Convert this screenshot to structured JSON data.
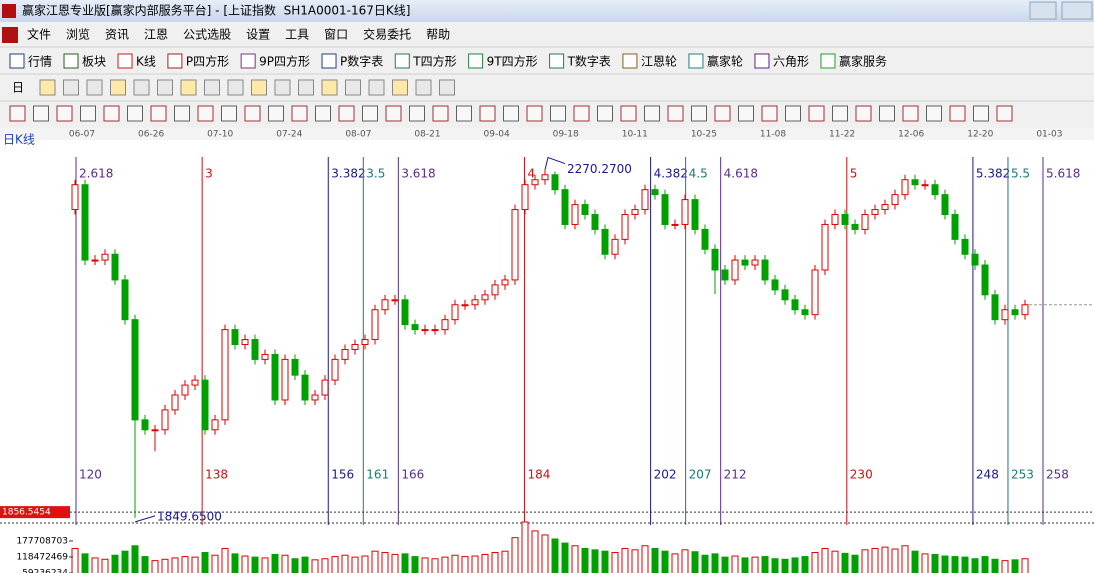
{
  "window_title": "赢家江恩专业版[赢家内部服务平台] - [上证指数  SH1A0001-167日K线]",
  "menu": [
    "文件",
    "浏览",
    "资讯",
    "江恩",
    "公式选股",
    "设置",
    "工具",
    "窗口",
    "交易委托",
    "帮助"
  ],
  "toolbar": [
    "行情",
    "板块",
    "K线",
    "P四方形",
    "9P四方形",
    "P数字表",
    "T四方形",
    "9T四方形",
    "T数字表",
    "江恩轮",
    "赢家轮",
    "六角形",
    "赢家服务"
  ],
  "period_selector": "日",
  "chart_data": {
    "type": "candlestick",
    "title": "日K线",
    "date_labels": [
      "06-07",
      "06-26",
      "07-10",
      "07-24",
      "08-07",
      "08-21",
      "09-04",
      "09-18",
      "10-11",
      "10-25",
      "11-08",
      "11-22",
      "12-06",
      "12-20",
      "01-03"
    ],
    "open": [
      2222,
      2252,
      2161,
      2161,
      2168,
      2137,
      2089,
      1968,
      1956,
      1956,
      1980,
      1998,
      2010,
      2016,
      1956,
      1968,
      2077,
      2059,
      2065,
      2041,
      2047,
      1992,
      2041,
      2022,
      1992,
      1998,
      2016,
      2041,
      2053,
      2059,
      2065,
      2101,
      2113,
      2113,
      2083,
      2077,
      2077,
      2077,
      2089,
      2107,
      2107,
      2113,
      2119,
      2131,
      2137,
      2222,
      2252,
      2258,
      2264,
      2246,
      2204,
      2228,
      2216,
      2198,
      2168,
      2186,
      2216,
      2222,
      2246,
      2240,
      2204,
      2204,
      2234,
      2198,
      2174,
      2149,
      2137,
      2161,
      2155,
      2161,
      2137,
      2125,
      2113,
      2101,
      2095,
      2149,
      2204,
      2216,
      2204,
      2198,
      2216,
      2222,
      2228,
      2240,
      2258,
      2252,
      2252,
      2240,
      2216,
      2186,
      2168,
      2155,
      2119,
      2089,
      2101,
      2095
    ],
    "high": [
      2258,
      2258,
      2167,
      2174,
      2174,
      2143,
      2095,
      1974,
      1962,
      1986,
      2004,
      2016,
      2022,
      2022,
      1974,
      2083,
      2083,
      2071,
      2071,
      2053,
      2053,
      2047,
      2047,
      2028,
      2004,
      2022,
      2047,
      2059,
      2065,
      2071,
      2107,
      2119,
      2119,
      2119,
      2089,
      2083,
      2083,
      2095,
      2113,
      2113,
      2119,
      2125,
      2137,
      2143,
      2228,
      2258,
      2264,
      2270.27,
      2268,
      2252,
      2234,
      2234,
      2222,
      2204,
      2192,
      2222,
      2228,
      2252,
      2252,
      2246,
      2210,
      2240,
      2240,
      2204,
      2180,
      2155,
      2167,
      2167,
      2167,
      2167,
      2143,
      2131,
      2119,
      2107,
      2155,
      2210,
      2222,
      2222,
      2210,
      2222,
      2228,
      2234,
      2246,
      2264,
      2264,
      2258,
      2258,
      2246,
      2222,
      2192,
      2174,
      2161,
      2125,
      2107,
      2107,
      2113
    ],
    "low": [
      2216,
      2155,
      2155,
      2155,
      2131,
      2083,
      1849.65,
      1950,
      1930,
      1950,
      1974,
      1992,
      2004,
      1950,
      1950,
      1962,
      2053,
      2053,
      2035,
      2035,
      1986,
      1986,
      2016,
      1986,
      1986,
      1992,
      2010,
      2035,
      2047,
      2053,
      2059,
      2095,
      2107,
      2077,
      2071,
      2071,
      2071,
      2071,
      2083,
      2101,
      2101,
      2107,
      2113,
      2125,
      2131,
      2216,
      2246,
      2252,
      2240,
      2198,
      2198,
      2210,
      2192,
      2162,
      2162,
      2180,
      2210,
      2216,
      2234,
      2198,
      2198,
      2198,
      2192,
      2168,
      2120,
      2131,
      2131,
      2149,
      2149,
      2131,
      2119,
      2107,
      2095,
      2089,
      2089,
      2143,
      2198,
      2198,
      2192,
      2192,
      2210,
      2216,
      2222,
      2234,
      2246,
      2246,
      2234,
      2210,
      2180,
      2162,
      2149,
      2113,
      2083,
      2083,
      2089,
      2089
    ],
    "close": [
      2252,
      2161,
      2161,
      2168,
      2137,
      2089,
      1968,
      1956,
      1956,
      1980,
      1998,
      2010,
      2016,
      1956,
      1968,
      2077,
      2059,
      2065,
      2041,
      2047,
      1992,
      2041,
      2022,
      1992,
      1998,
      2016,
      2041,
      2053,
      2059,
      2065,
      2101,
      2113,
      2113,
      2083,
      2077,
      2077,
      2077,
      2089,
      2107,
      2107,
      2113,
      2119,
      2131,
      2137,
      2222,
      2252,
      2258,
      2264,
      2246,
      2204,
      2228,
      2216,
      2198,
      2168,
      2186,
      2216,
      2222,
      2246,
      2240,
      2204,
      2204,
      2234,
      2198,
      2174,
      2149,
      2137,
      2161,
      2155,
      2161,
      2137,
      2125,
      2113,
      2101,
      2095,
      2149,
      2204,
      2216,
      2204,
      2198,
      2216,
      2222,
      2228,
      2240,
      2258,
      2252,
      2252,
      2240,
      2216,
      2186,
      2168,
      2155,
      2119,
      2089,
      2101,
      2095,
      2107
    ],
    "volume": [
      150000000,
      130000000,
      115000000,
      110000000,
      125000000,
      140000000,
      160000000,
      120000000,
      105000000,
      110000000,
      115000000,
      120000000,
      118000000,
      135000000,
      125000000,
      150000000,
      130000000,
      122000000,
      118000000,
      115000000,
      128000000,
      125000000,
      112000000,
      118000000,
      108000000,
      112000000,
      120000000,
      125000000,
      118000000,
      122000000,
      140000000,
      135000000,
      128000000,
      130000000,
      120000000,
      115000000,
      112000000,
      118000000,
      125000000,
      120000000,
      122000000,
      128000000,
      135000000,
      140000000,
      190000000,
      248000000,
      215000000,
      200000000,
      185000000,
      170000000,
      160000000,
      150000000,
      145000000,
      140000000,
      135000000,
      150000000,
      145000000,
      160000000,
      150000000,
      140000000,
      130000000,
      145000000,
      138000000,
      125000000,
      130000000,
      118000000,
      122000000,
      115000000,
      118000000,
      120000000,
      112000000,
      110000000,
      115000000,
      120000000,
      135000000,
      150000000,
      140000000,
      132000000,
      125000000,
      145000000,
      150000000,
      155000000,
      148000000,
      160000000,
      140000000,
      130000000,
      128000000,
      122000000,
      120000000,
      118000000,
      112000000,
      120000000,
      110000000,
      105000000,
      108000000,
      112000000
    ],
    "up_color": "#e00000",
    "down_color": "#00a000",
    "ylim": [
      1841,
      2306
    ],
    "volume_ylim": [
      0,
      248000000
    ],
    "volume_ticks": [
      59236234,
      118472469,
      177708703
    ],
    "high_mark": {
      "value": 2270.27,
      "label": "2270.2700"
    },
    "low_mark": {
      "value": 1849.65,
      "label": "1849.6500"
    },
    "price_line": {
      "value": 1856.5454,
      "label": "1856.5454"
    },
    "cycle_xlim": [
      120,
      258
    ],
    "time_cycles": [
      {
        "bar": 120,
        "ratio": 2.618,
        "color": "#5a2d8a"
      },
      {
        "bar": 138,
        "ratio": 3,
        "color": "#d01010"
      },
      {
        "bar": 156,
        "ratio": 3.382,
        "color": "#1a1a8c"
      },
      {
        "bar": 161,
        "ratio": 3.5,
        "color": "#1a7a7a"
      },
      {
        "bar": 166,
        "ratio": 3.618,
        "color": "#5a2d8a"
      },
      {
        "bar": 184,
        "ratio": 4,
        "color": "#d01010"
      },
      {
        "bar": 202,
        "ratio": 4.382,
        "color": "#1a1a8c"
      },
      {
        "bar": 207,
        "ratio": 4.5,
        "color": "#1a7a7a"
      },
      {
        "bar": 212,
        "ratio": 4.618,
        "color": "#5a2d8a"
      },
      {
        "bar": 230,
        "ratio": 5,
        "color": "#d01010"
      },
      {
        "bar": 248,
        "ratio": 5.382,
        "color": "#1a1a8c"
      },
      {
        "bar": 253,
        "ratio": 5.5,
        "color": "#1a7a7a"
      },
      {
        "bar": 258,
        "ratio": 5.618,
        "color": "#5a2d8a"
      }
    ]
  }
}
